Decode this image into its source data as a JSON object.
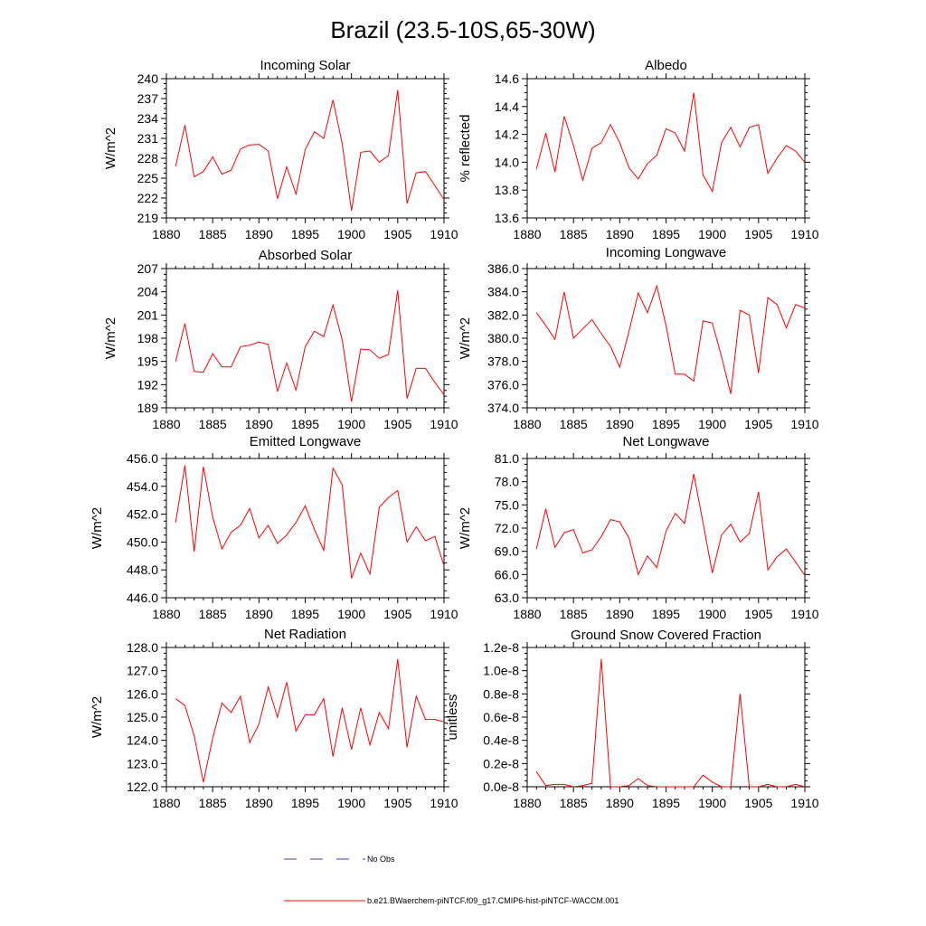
{
  "page": {
    "title": "Brazil (23.5-10S,65-30W)"
  },
  "legend": {
    "obs_label": "No Obs",
    "obs_color": "#3b3bc8",
    "model_label": "b.e21.BWaerchem-piNTCF.f09_g17.CMIP6-hist-piNTCF-WACCM.001",
    "model_color": "#ff0000"
  },
  "chart_data": [
    {
      "type": "line",
      "title": "Incoming Solar",
      "ylabel": "W/m^2",
      "xlim": [
        1880,
        1910
      ],
      "ylim": [
        219,
        240
      ],
      "xticks": [
        "1880",
        "1885",
        "1890",
        "1895",
        "1900",
        "1905",
        "1910"
      ],
      "yticks": [
        "219",
        "222",
        "225",
        "228",
        "231",
        "234",
        "237",
        "240"
      ],
      "x": [
        1881,
        1882,
        1883,
        1884,
        1885,
        1886,
        1887,
        1888,
        1889,
        1890,
        1891,
        1892,
        1893,
        1894,
        1895,
        1896,
        1897,
        1898,
        1899,
        1900,
        1901,
        1902,
        1903,
        1904,
        1905,
        1906,
        1907,
        1908,
        1909,
        1910
      ],
      "series": [
        {
          "values": [
            226.8,
            233.0,
            225.2,
            226.0,
            228.2,
            225.6,
            226.2,
            229.4,
            230.0,
            230.1,
            229.1,
            221.9,
            226.7,
            222.6,
            229.3,
            232.0,
            231.0,
            236.8,
            230.2,
            220.1,
            228.9,
            229.1,
            227.4,
            228.4,
            238.3,
            221.2,
            225.8,
            226.0,
            223.9,
            221.8
          ]
        }
      ]
    },
    {
      "type": "line",
      "title": "Albedo",
      "ylabel": "% reflected",
      "xlim": [
        1880,
        1910
      ],
      "ylim": [
        13.6,
        14.6
      ],
      "xticks": [
        "1880",
        "1885",
        "1890",
        "1895",
        "1900",
        "1905",
        "1910"
      ],
      "yticks": [
        "13.6",
        "13.8",
        "14.0",
        "14.2",
        "14.4",
        "14.6"
      ],
      "x": [
        1881,
        1882,
        1883,
        1884,
        1885,
        1886,
        1887,
        1888,
        1889,
        1890,
        1891,
        1892,
        1893,
        1894,
        1895,
        1896,
        1897,
        1898,
        1899,
        1900,
        1901,
        1902,
        1903,
        1904,
        1905,
        1906,
        1907,
        1908,
        1909,
        1910
      ],
      "series": [
        {
          "values": [
            13.95,
            14.21,
            13.93,
            14.33,
            14.12,
            13.87,
            14.1,
            14.14,
            14.27,
            14.14,
            13.96,
            13.88,
            13.99,
            14.05,
            14.24,
            14.21,
            14.08,
            14.5,
            13.91,
            13.79,
            14.14,
            14.25,
            14.11,
            14.25,
            14.27,
            13.92,
            14.03,
            14.12,
            14.08,
            14.0
          ]
        }
      ]
    },
    {
      "type": "line",
      "title": "Absorbed Solar",
      "ylabel": "W/m^2",
      "xlim": [
        1880,
        1910
      ],
      "ylim": [
        189,
        207
      ],
      "xticks": [
        "1880",
        "1885",
        "1890",
        "1895",
        "1900",
        "1905",
        "1910"
      ],
      "yticks": [
        "189",
        "192",
        "195",
        "198",
        "201",
        "204",
        "207"
      ],
      "x": [
        1881,
        1882,
        1883,
        1884,
        1885,
        1886,
        1887,
        1888,
        1889,
        1890,
        1891,
        1892,
        1893,
        1894,
        1895,
        1896,
        1897,
        1898,
        1899,
        1900,
        1901,
        1902,
        1903,
        1904,
        1905,
        1906,
        1907,
        1908,
        1909,
        1910
      ],
      "series": [
        {
          "values": [
            195.0,
            199.9,
            193.7,
            193.6,
            196.0,
            194.3,
            194.3,
            196.9,
            197.1,
            197.5,
            197.2,
            191.1,
            194.8,
            191.3,
            196.9,
            198.9,
            198.2,
            202.3,
            197.8,
            189.8,
            196.6,
            196.5,
            195.4,
            195.9,
            204.2,
            190.2,
            194.1,
            194.1,
            192.3,
            190.7
          ]
        }
      ]
    },
    {
      "type": "line",
      "title": "Incoming Longwave",
      "ylabel": "W/m^2",
      "xlim": [
        1880,
        1910
      ],
      "ylim": [
        374.0,
        386.0
      ],
      "xticks": [
        "1880",
        "1885",
        "1890",
        "1895",
        "1900",
        "1905",
        "1910"
      ],
      "yticks": [
        "374.0",
        "376.0",
        "378.0",
        "380.0",
        "382.0",
        "384.0",
        "386.0"
      ],
      "x": [
        1881,
        1882,
        1883,
        1884,
        1885,
        1886,
        1887,
        1888,
        1889,
        1890,
        1891,
        1892,
        1893,
        1894,
        1895,
        1896,
        1897,
        1898,
        1899,
        1900,
        1901,
        1902,
        1903,
        1904,
        1905,
        1906,
        1907,
        1908,
        1909,
        1910
      ],
      "series": [
        {
          "values": [
            382.2,
            381.1,
            379.9,
            384.0,
            380.0,
            380.8,
            381.6,
            380.4,
            379.3,
            377.5,
            380.6,
            383.9,
            382.2,
            384.5,
            381.1,
            376.9,
            376.9,
            376.3,
            381.5,
            381.3,
            378.4,
            375.2,
            382.4,
            382.0,
            377.0,
            383.5,
            382.9,
            380.9,
            382.9,
            382.6
          ]
        }
      ]
    },
    {
      "type": "line",
      "title": "Emitted Longwave",
      "ylabel": "W/m^2",
      "xlim": [
        1880,
        1910
      ],
      "ylim": [
        446.0,
        456.0
      ],
      "xticks": [
        "1880",
        "1885",
        "1890",
        "1895",
        "1900",
        "1905",
        "1910"
      ],
      "yticks": [
        "446.0",
        "448.0",
        "450.0",
        "452.0",
        "454.0",
        "456.0"
      ],
      "x": [
        1881,
        1882,
        1883,
        1884,
        1885,
        1886,
        1887,
        1888,
        1889,
        1890,
        1891,
        1892,
        1893,
        1894,
        1895,
        1896,
        1897,
        1898,
        1899,
        1900,
        1901,
        1902,
        1903,
        1904,
        1905,
        1906,
        1907,
        1908,
        1909,
        1910
      ],
      "series": [
        {
          "values": [
            451.4,
            455.5,
            449.3,
            455.4,
            451.8,
            449.5,
            450.7,
            451.2,
            452.4,
            450.3,
            451.2,
            449.9,
            450.5,
            451.4,
            452.6,
            450.9,
            449.4,
            455.3,
            454.1,
            447.4,
            449.2,
            447.7,
            452.5,
            453.2,
            453.7,
            450.0,
            451.1,
            450.1,
            450.4,
            448.3
          ]
        }
      ]
    },
    {
      "type": "line",
      "title": "Net Longwave",
      "ylabel": "W/m^2",
      "xlim": [
        1880,
        1910
      ],
      "ylim": [
        63.0,
        81.0
      ],
      "xticks": [
        "1880",
        "1885",
        "1890",
        "1895",
        "1900",
        "1905",
        "1910"
      ],
      "yticks": [
        "63.0",
        "66.0",
        "69.0",
        "72.0",
        "75.0",
        "78.0",
        "81.0"
      ],
      "x": [
        1881,
        1882,
        1883,
        1884,
        1885,
        1886,
        1887,
        1888,
        1889,
        1890,
        1891,
        1892,
        1893,
        1894,
        1895,
        1896,
        1897,
        1898,
        1899,
        1900,
        1901,
        1902,
        1903,
        1904,
        1905,
        1906,
        1907,
        1908,
        1909,
        1910
      ],
      "series": [
        {
          "values": [
            69.3,
            74.5,
            69.5,
            71.4,
            71.8,
            68.8,
            69.2,
            70.9,
            73.1,
            72.8,
            70.7,
            66.0,
            68.4,
            66.9,
            71.6,
            73.9,
            72.6,
            79.0,
            72.7,
            66.2,
            71.1,
            72.5,
            70.2,
            71.3,
            76.7,
            66.6,
            68.3,
            69.3,
            67.6,
            65.9
          ]
        }
      ]
    },
    {
      "type": "line",
      "title": "Net Radiation",
      "ylabel": "W/m^2",
      "xlim": [
        1880,
        1910
      ],
      "ylim": [
        122.0,
        128.0
      ],
      "xticks": [
        "1880",
        "1885",
        "1890",
        "1895",
        "1900",
        "1905",
        "1910"
      ],
      "yticks": [
        "122.0",
        "123.0",
        "124.0",
        "125.0",
        "126.0",
        "127.0",
        "128.0"
      ],
      "x": [
        1881,
        1882,
        1883,
        1884,
        1885,
        1886,
        1887,
        1888,
        1889,
        1890,
        1891,
        1892,
        1893,
        1894,
        1895,
        1896,
        1897,
        1898,
        1899,
        1900,
        1901,
        1902,
        1903,
        1904,
        1905,
        1906,
        1907,
        1908,
        1909,
        1910
      ],
      "series": [
        {
          "values": [
            125.8,
            125.5,
            124.2,
            122.2,
            124.1,
            125.6,
            125.2,
            125.9,
            123.9,
            124.7,
            126.3,
            125.0,
            126.5,
            124.4,
            125.1,
            125.1,
            125.8,
            123.3,
            125.4,
            123.6,
            125.4,
            123.8,
            125.2,
            124.5,
            127.5,
            123.7,
            125.9,
            124.9,
            124.9,
            124.8
          ]
        }
      ]
    },
    {
      "type": "line",
      "title": "Ground Snow Covered Fraction",
      "ylabel": "unitless",
      "xlim": [
        1880,
        1910
      ],
      "ylim": [
        0.0,
        1.2
      ],
      "xticks": [
        "1880",
        "1885",
        "1890",
        "1895",
        "1900",
        "1905",
        "1910"
      ],
      "yticks": [
        "0.0e-8",
        "0.2e-8",
        "0.4e-8",
        "0.6e-8",
        "0.8e-8",
        "1.0e-8",
        "1.2e-8"
      ],
      "x": [
        1881,
        1882,
        1883,
        1884,
        1885,
        1886,
        1887,
        1888,
        1889,
        1890,
        1891,
        1892,
        1893,
        1894,
        1895,
        1896,
        1897,
        1898,
        1899,
        1900,
        1901,
        1902,
        1903,
        1904,
        1905,
        1906,
        1907,
        1908,
        1909,
        1910
      ],
      "series": [
        {
          "values": [
            0.13,
            0.01,
            0.02,
            0.02,
            0.0,
            0.01,
            0.03,
            1.1,
            0.0,
            0.0,
            0.01,
            0.07,
            0.01,
            0.0,
            0.0,
            0.0,
            0.0,
            0.0,
            0.1,
            0.04,
            0.0,
            0.0,
            0.8,
            0.0,
            0.0,
            0.02,
            0.0,
            0.0,
            0.02,
            0.0
          ]
        }
      ]
    }
  ]
}
